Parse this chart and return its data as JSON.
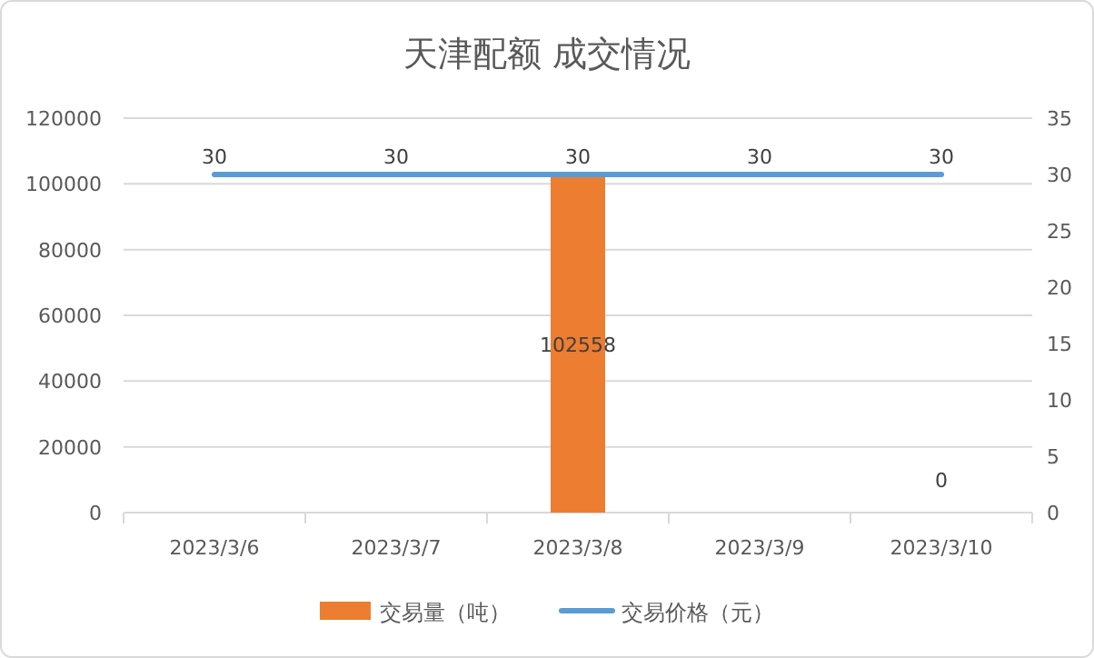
{
  "chart_data": {
    "type": "bar",
    "title": "天津配额 成交情况",
    "categories": [
      "2023/3/6",
      "2023/3/7",
      "2023/3/8",
      "2023/3/9",
      "2023/3/10"
    ],
    "series": [
      {
        "name": "交易量（吨）",
        "color": "#ed7d31",
        "values": [
          null,
          null,
          102558,
          null,
          0
        ]
      },
      {
        "name": "交易价格（元）",
        "type": "line",
        "axis": "y2",
        "color": "#5b9bd5",
        "values": [
          30,
          30,
          30,
          30,
          30
        ]
      }
    ],
    "ylim": [
      0,
      120000
    ],
    "yticks": [
      0,
      20000,
      40000,
      60000,
      80000,
      100000,
      120000
    ],
    "y2lim": [
      0,
      35
    ],
    "y2ticks": [
      0,
      5,
      10,
      15,
      20,
      25,
      30,
      35
    ],
    "grid": "y",
    "legend": "bottom",
    "data_labels": true,
    "marker": "none",
    "line_style": "solid"
  }
}
